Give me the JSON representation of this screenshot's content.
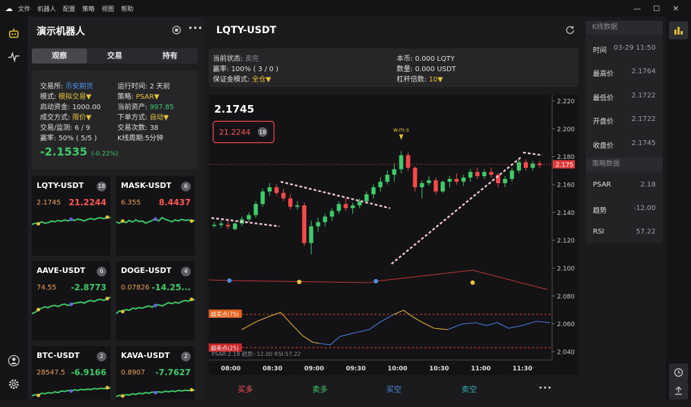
{
  "app": {
    "logo": "logo-icon"
  },
  "menu": [
    "文件",
    "机器人",
    "配置",
    "策略",
    "视图",
    "帮助"
  ],
  "window_controls": {
    "minimize": "—",
    "maximize": "☐",
    "close": "✕"
  },
  "left_nav": {
    "robot_icon": "robot-icon",
    "pulse_icon": "pulse-icon",
    "user_icon": "user-icon",
    "settings_icon": "gear-icon"
  },
  "panel": {
    "title": "演示机器人",
    "tabs": [
      "观察",
      "交易",
      "持有"
    ],
    "info": {
      "exchange_label": "交易所:",
      "exchange": "币安期货",
      "runtime_label": "运行时间:",
      "runtime": "2 天前",
      "mode_label": "模式:",
      "mode": "模拟交易▼",
      "strategy_label": "策略:",
      "strategy": "PSAR▼",
      "start_label": "启动资金:",
      "start": "1000.00",
      "assets_label": "当前资产:",
      "assets": "997.85",
      "fill_label": "成交方式:",
      "fill": "限价▼",
      "order_label": "下单方式:",
      "order": "自动▼",
      "monitor_label": "交易/监测:",
      "monitor": "6 / 9",
      "trades_label": "交易次数:",
      "trades": "38",
      "winrate_label": "赢率:",
      "winrate": "50% ( 5/5 )",
      "kperiod_label": "K线周期:",
      "kperiod": "5分钟",
      "pnl": "-2.1535",
      "pnl_pct": "(-0.22%)"
    },
    "cards": [
      {
        "symbol": "LQTY-USDT",
        "badge": "18",
        "price": "2.1745",
        "value": "21.2244",
        "dir": "red",
        "spark": [
          0.55,
          0.5,
          0.52,
          0.45,
          0.5,
          0.48,
          0.42,
          0.45,
          0.4,
          0.43,
          0.38,
          0.42,
          0.36,
          0.4,
          0.35,
          0.38,
          0.42,
          0.36,
          0.33,
          0.37,
          0.32,
          0.3,
          0.34,
          0.28,
          0.3
        ]
      },
      {
        "symbol": "MASK-USDT",
        "badge": "6",
        "price": "6.355",
        "value": "8.4437",
        "dir": "red",
        "spark": [
          0.45,
          0.5,
          0.42,
          0.48,
          0.4,
          0.46,
          0.38,
          0.44,
          0.42,
          0.5,
          0.45,
          0.4,
          0.35,
          0.42,
          0.3,
          0.36,
          0.4,
          0.45,
          0.38,
          0.42,
          0.36,
          0.4,
          0.38,
          0.42,
          0.4
        ]
      },
      {
        "symbol": "AAVE-USDT",
        "badge": "6",
        "price": "74.55",
        "value": "-2.8773",
        "dir": "green",
        "spark": [
          0.7,
          0.65,
          0.55,
          0.5,
          0.45,
          0.48,
          0.42,
          0.4,
          0.44,
          0.38,
          0.35,
          0.4,
          0.36,
          0.32,
          0.3,
          0.28,
          0.32,
          0.25,
          0.22,
          0.26,
          0.2,
          0.18,
          0.22,
          0.15,
          0.1
        ]
      },
      {
        "symbol": "DOGE-USDT",
        "badge": "4",
        "price": "0.07826",
        "value": "-14.25...",
        "dir": "green",
        "spark": [
          0.7,
          0.6,
          0.62,
          0.55,
          0.58,
          0.5,
          0.52,
          0.48,
          0.5,
          0.45,
          0.42,
          0.46,
          0.4,
          0.38,
          0.42,
          0.36,
          0.3,
          0.34,
          0.28,
          0.32,
          0.26,
          0.22,
          0.25,
          0.18,
          0.2
        ]
      },
      {
        "symbol": "BTC-USDT",
        "badge": "2",
        "price": "28547.5",
        "value": "-6.9166",
        "dir": "green",
        "spark": [
          0.6,
          0.55,
          0.58,
          0.5,
          0.52,
          0.48,
          0.5,
          0.45,
          0.48,
          0.42,
          0.44,
          0.4,
          0.42,
          0.38,
          0.4,
          0.36,
          0.38,
          0.35,
          0.37,
          0.33,
          0.35,
          0.32,
          0.34,
          0.3,
          0.32
        ]
      },
      {
        "symbol": "KAVA-USDT",
        "badge": "2",
        "price": "0.8907",
        "value": "-7.7627",
        "dir": "green",
        "spark": [
          0.62,
          0.58,
          0.6,
          0.55,
          0.57,
          0.52,
          0.55,
          0.5,
          0.52,
          0.48,
          0.5,
          0.46,
          0.48,
          0.45,
          0.47,
          0.43,
          0.45,
          0.42,
          0.44,
          0.4,
          0.42,
          0.39,
          0.41,
          0.38,
          0.4
        ]
      }
    ]
  },
  "main": {
    "title": "LQTY-USDT",
    "refresh_icon": "refresh-icon",
    "status": {
      "state_label": "当前状态:",
      "state": "卖完",
      "winrate_label": "赢率:",
      "winrate": "100% ( 3 / 0 )",
      "margin_label": "保证金模式:",
      "margin": "全仓▼",
      "coin_label": "本币:",
      "coin": "0.000 LQTY",
      "qty_label": "数量:",
      "qty": "0.000 USDT",
      "lev_label": "杠杆倍数:",
      "lev": "10▼"
    },
    "actions": {
      "buy_long": "买多",
      "sell_long": "卖多",
      "buy_short": "买空",
      "sell_short": "卖空",
      "more": "•••"
    }
  },
  "chart_data": {
    "type": "candlestick",
    "price": "2.1745",
    "position_value": "21.2244",
    "position_badge": "18",
    "last_price_tag": "2.175",
    "annotation": "w.m.s",
    "y_ticks": [
      "2.220",
      "2.200",
      "2.180",
      "2.160",
      "2.140",
      "2.120",
      "2.100",
      "2.080",
      "2.060",
      "2.040"
    ],
    "ylim": [
      2.034,
      2.2245
    ],
    "x_ticks": [
      "08:00",
      "08:30",
      "09:00",
      "09:30",
      "10:00",
      "10:30",
      "11:00",
      "11:30"
    ],
    "overbought_label": "超买点(75)",
    "oversold_label": "超卖点(25)",
    "indicator_text": "PSAR:2.18 趋势:-12.00 RSI:57.22",
    "colors": {
      "up": "#3fcb6a",
      "down": "#ff4a4a",
      "psar": "#f3c8d4",
      "rsi_a": "#e8b23a",
      "rsi_b": "#4a7ae0",
      "trend": "#c8383a"
    },
    "candles": [
      {
        "o": 2.131,
        "h": 2.133,
        "l": 2.129,
        "c": 2.131
      },
      {
        "o": 2.131,
        "h": 2.134,
        "l": 2.129,
        "c": 2.132
      },
      {
        "o": 2.131,
        "h": 2.135,
        "l": 2.128,
        "c": 2.13
      },
      {
        "o": 2.128,
        "h": 2.133,
        "l": 2.127,
        "c": 2.132
      },
      {
        "o": 2.132,
        "h": 2.137,
        "l": 2.13,
        "c": 2.135
      },
      {
        "o": 2.135,
        "h": 2.14,
        "l": 2.133,
        "c": 2.138
      },
      {
        "o": 2.138,
        "h": 2.148,
        "l": 2.136,
        "c": 2.146
      },
      {
        "o": 2.146,
        "h": 2.157,
        "l": 2.144,
        "c": 2.155
      },
      {
        "o": 2.155,
        "h": 2.161,
        "l": 2.152,
        "c": 2.158
      },
      {
        "o": 2.158,
        "h": 2.16,
        "l": 2.152,
        "c": 2.154
      },
      {
        "o": 2.154,
        "h": 2.157,
        "l": 2.148,
        "c": 2.15
      },
      {
        "o": 2.15,
        "h": 2.153,
        "l": 2.142,
        "c": 2.144
      },
      {
        "o": 2.144,
        "h": 2.148,
        "l": 2.142,
        "c": 2.145
      },
      {
        "o": 2.145,
        "h": 2.147,
        "l": 2.116,
        "c": 2.118
      },
      {
        "o": 2.118,
        "h": 2.134,
        "l": 2.11,
        "c": 2.13
      },
      {
        "o": 2.13,
        "h": 2.136,
        "l": 2.126,
        "c": 2.133
      },
      {
        "o": 2.133,
        "h": 2.139,
        "l": 2.13,
        "c": 2.137
      },
      {
        "o": 2.137,
        "h": 2.143,
        "l": 2.134,
        "c": 2.141
      },
      {
        "o": 2.141,
        "h": 2.148,
        "l": 2.139,
        "c": 2.146
      },
      {
        "o": 2.146,
        "h": 2.15,
        "l": 2.141,
        "c": 2.143
      },
      {
        "o": 2.143,
        "h": 2.147,
        "l": 2.139,
        "c": 2.145
      },
      {
        "o": 2.145,
        "h": 2.15,
        "l": 2.143,
        "c": 2.148
      },
      {
        "o": 2.148,
        "h": 2.155,
        "l": 2.146,
        "c": 2.153
      },
      {
        "o": 2.153,
        "h": 2.16,
        "l": 2.15,
        "c": 2.158
      },
      {
        "o": 2.158,
        "h": 2.165,
        "l": 2.155,
        "c": 2.162
      },
      {
        "o": 2.162,
        "h": 2.17,
        "l": 2.16,
        "c": 2.167
      },
      {
        "o": 2.167,
        "h": 2.175,
        "l": 2.162,
        "c": 2.171
      },
      {
        "o": 2.171,
        "h": 2.184,
        "l": 2.168,
        "c": 2.181
      },
      {
        "o": 2.181,
        "h": 2.183,
        "l": 2.17,
        "c": 2.172
      },
      {
        "o": 2.172,
        "h": 2.173,
        "l": 2.155,
        "c": 2.158
      },
      {
        "o": 2.158,
        "h": 2.163,
        "l": 2.15,
        "c": 2.161
      },
      {
        "o": 2.161,
        "h": 2.166,
        "l": 2.159,
        "c": 2.163
      },
      {
        "o": 2.163,
        "h": 2.165,
        "l": 2.153,
        "c": 2.155
      },
      {
        "o": 2.155,
        "h": 2.163,
        "l": 2.154,
        "c": 2.162
      },
      {
        "o": 2.162,
        "h": 2.166,
        "l": 2.158,
        "c": 2.164
      },
      {
        "o": 2.164,
        "h": 2.168,
        "l": 2.16,
        "c": 2.162
      },
      {
        "o": 2.162,
        "h": 2.167,
        "l": 2.159,
        "c": 2.165
      },
      {
        "o": 2.165,
        "h": 2.171,
        "l": 2.162,
        "c": 2.169
      },
      {
        "o": 2.169,
        "h": 2.172,
        "l": 2.164,
        "c": 2.166
      },
      {
        "o": 2.166,
        "h": 2.171,
        "l": 2.164,
        "c": 2.169
      },
      {
        "o": 2.169,
        "h": 2.172,
        "l": 2.165,
        "c": 2.167
      },
      {
        "o": 2.167,
        "h": 2.168,
        "l": 2.158,
        "c": 2.161
      },
      {
        "o": 2.161,
        "h": 2.166,
        "l": 2.158,
        "c": 2.164
      },
      {
        "o": 2.164,
        "h": 2.172,
        "l": 2.162,
        "c": 2.17
      },
      {
        "o": 2.17,
        "h": 2.178,
        "l": 2.168,
        "c": 2.176
      },
      {
        "o": 2.176,
        "h": 2.178,
        "l": 2.17,
        "c": 2.172
      },
      {
        "o": 2.172,
        "h": 2.177,
        "l": 2.17,
        "c": 2.175
      },
      {
        "o": 2.175,
        "h": 2.177,
        "l": 2.172,
        "c": 2.174
      }
    ],
    "psar_segments": [
      {
        "from": 0,
        "to": 9,
        "start": 2.136,
        "end": 2.13
      },
      {
        "from": 10,
        "to": 25,
        "start": 2.162,
        "end": 2.143
      },
      {
        "from": 26,
        "to": 44,
        "start": 2.103,
        "end": 2.18
      },
      {
        "from": 45,
        "to": 47,
        "start": 2.183,
        "end": 2.181
      }
    ]
  },
  "right_panel": {
    "kline_header": "K线数据",
    "kline_rows": [
      {
        "k": "时间",
        "v": "03-29 11:50"
      },
      {
        "k": "最高价",
        "v": "2.1764"
      },
      {
        "k": "最低价",
        "v": "2.1722"
      },
      {
        "k": "开盘价",
        "v": "2.1722"
      },
      {
        "k": "收盘价",
        "v": "2.1745"
      }
    ],
    "strategy_header": "策略数据",
    "strategy_rows": [
      {
        "k": "PSAR",
        "v": "2.18"
      },
      {
        "k": "趋势",
        "v": "-12.00"
      },
      {
        "k": "RSI",
        "v": "57.22"
      }
    ]
  },
  "right_bar": {
    "chart_icon": "bar-chart-icon",
    "history_icon": "history-icon",
    "export_icon": "export-icon"
  }
}
